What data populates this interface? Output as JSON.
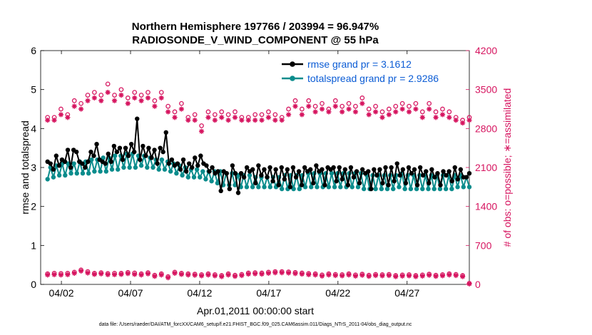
{
  "chart_data": {
    "type": "line",
    "title": "Northern Hemisphere 197766 / 203994 = 96.947%",
    "subtitle": "RADIOSONDE_V_WIND_COMPONENT @ 55 hPa",
    "xlabel": "Apr.01,2011 00:00:00 start",
    "ylabel_left": "rmse and totalspread",
    "ylabel_right": "# of obs: o=possible; ∗=assimilated",
    "footnote": "data file: /Users/raeder/DAI/ATM_forcXX/CAM6_setup/f.e21.FHIST_BGC.f09_025.CAM6assim.011/Diags_NTrS_2011-04/obs_diag_output.nc",
    "x_range_days": [
      0.5,
      31.5
    ],
    "ylim_left": [
      0,
      6
    ],
    "ylim_right": [
      0,
      4200
    ],
    "left_ticks": [
      "0",
      "1",
      "2",
      "3",
      "4",
      "5",
      "6"
    ],
    "right_ticks": [
      "0",
      "700",
      "1400",
      "2100",
      "2800",
      "3500",
      "4200"
    ],
    "x_ticks": [
      {
        "day": 2,
        "label": "04/02"
      },
      {
        "day": 7,
        "label": "04/07"
      },
      {
        "day": 12,
        "label": "04/12"
      },
      {
        "day": 17,
        "label": "04/17"
      },
      {
        "day": 22,
        "label": "04/22"
      },
      {
        "day": 27,
        "label": "04/27"
      }
    ],
    "colors": {
      "rmse": "#000000",
      "spread": "#0a8c8c",
      "obs": "#d6145f",
      "legend_text": "#0b5cd5"
    },
    "series": [
      {
        "name": "rmse grand pr = 3.1612",
        "key": "rmse",
        "values": [
          3.15,
          3.1,
          2.95,
          3.3,
          3.05,
          3.2,
          3.15,
          3.45,
          3.0,
          3.45,
          3.4,
          3.15,
          3.1,
          3.0,
          3.15,
          3.4,
          3.3,
          3.6,
          3.2,
          3.15,
          3.1,
          3.35,
          3.15,
          3.55,
          3.4,
          3.5,
          3.2,
          3.5,
          3.3,
          3.6,
          3.4,
          4.25,
          3.2,
          3.55,
          3.3,
          3.5,
          3.25,
          3.45,
          3.1,
          3.5,
          3.4,
          3.9,
          3.1,
          3.2,
          3.05,
          3.1,
          2.95,
          3.2,
          2.9,
          3.1,
          3.0,
          3.25,
          3.05,
          3.3,
          3.1,
          3.05,
          2.9,
          3.0,
          2.85,
          2.9,
          2.4,
          2.9,
          2.85,
          2.45,
          3.05,
          2.85,
          2.35,
          2.85,
          2.75,
          3.0,
          2.9,
          2.95,
          2.6,
          3.05,
          2.8,
          2.95,
          2.75,
          3.0,
          2.65,
          2.95,
          2.55,
          3.0,
          2.7,
          2.95,
          2.5,
          3.0,
          2.75,
          2.9,
          2.55,
          3.0,
          2.9,
          2.95,
          2.6,
          3.05,
          2.9,
          2.95,
          2.55,
          3.0,
          2.95,
          3.0,
          2.65,
          3.0,
          2.7,
          2.95,
          2.55,
          3.0,
          2.75,
          2.9,
          2.6,
          2.95,
          2.85,
          2.9,
          2.45,
          2.95,
          2.8,
          2.95,
          2.6,
          3.0,
          2.55,
          3.0,
          2.65,
          3.1,
          2.8,
          2.95,
          2.6,
          3.0,
          2.85,
          2.95,
          2.55,
          3.0,
          2.8,
          2.9,
          2.6,
          2.95,
          2.75,
          2.85,
          2.55,
          2.9,
          2.8,
          2.9,
          2.65,
          3.0,
          2.7,
          2.95,
          2.75,
          2.75,
          2.85
        ]
      },
      {
        "name": "totalspread grand pr = 2.9286",
        "key": "spread",
        "values": [
          2.7,
          3.0,
          2.75,
          3.05,
          2.8,
          3.1,
          2.8,
          3.1,
          2.85,
          3.1,
          2.85,
          3.15,
          2.85,
          3.15,
          2.85,
          3.2,
          2.9,
          3.2,
          2.9,
          3.25,
          2.9,
          3.25,
          2.95,
          3.3,
          2.95,
          3.3,
          3.0,
          3.35,
          3.0,
          3.35,
          3.0,
          3.3,
          3.05,
          3.3,
          3.0,
          3.25,
          3.0,
          3.2,
          2.95,
          3.2,
          2.95,
          3.15,
          2.9,
          3.1,
          2.85,
          3.05,
          2.8,
          3.0,
          2.75,
          2.95,
          2.75,
          2.95,
          2.75,
          2.9,
          2.7,
          2.9,
          2.65,
          2.9,
          2.6,
          2.9,
          2.55,
          2.85,
          2.55,
          2.85,
          2.55,
          2.8,
          2.5,
          2.8,
          2.5,
          2.8,
          2.5,
          2.75,
          2.5,
          2.75,
          2.5,
          2.75,
          2.5,
          2.75,
          2.5,
          2.75,
          2.45,
          2.8,
          2.45,
          2.8,
          2.45,
          2.8,
          2.45,
          2.8,
          2.5,
          2.85,
          2.5,
          2.85,
          2.5,
          2.85,
          2.5,
          2.85,
          2.5,
          2.85,
          2.5,
          2.85,
          2.5,
          2.85,
          2.5,
          2.85,
          2.5,
          2.85,
          2.5,
          2.85,
          2.45,
          2.8,
          2.45,
          2.8,
          2.45,
          2.8,
          2.45,
          2.8,
          2.45,
          2.8,
          2.45,
          2.8,
          2.5,
          2.85,
          2.45,
          2.8,
          2.45,
          2.8,
          2.45,
          2.8,
          2.45,
          2.8,
          2.45,
          2.8,
          2.45,
          2.8,
          2.45,
          2.8,
          2.45,
          2.8,
          2.45,
          2.8,
          2.5,
          2.8,
          2.5,
          2.75,
          2.5
        ]
      },
      {
        "name": "obs possible",
        "key": "obs_possible",
        "marker": "o",
        "values": [
          3000,
          3000,
          3150,
          3050,
          3300,
          3250,
          3400,
          3450,
          3400,
          3600,
          3400,
          3500,
          3350,
          3450,
          3400,
          3450,
          3300,
          3450,
          3200,
          3100,
          3250,
          3000,
          3050,
          2850,
          3100,
          3050,
          3100,
          3050,
          3100,
          3000,
          3000,
          3050,
          3050,
          3100,
          3050,
          3000,
          3150,
          3300,
          3150,
          3300,
          3200,
          3250,
          3150,
          3300,
          3200,
          3250,
          3200,
          3350,
          3150,
          3200,
          3100,
          3150,
          3200,
          3250,
          3200,
          3250,
          3100,
          3250,
          3100,
          3150,
          3100,
          3000,
          2950,
          3000
        ]
      },
      {
        "name": "obs assimilated",
        "key": "obs_assimilated",
        "marker": "*",
        "values": [
          2950,
          2950,
          3050,
          3000,
          3200,
          3150,
          3300,
          3350,
          3300,
          3450,
          3300,
          3400,
          3250,
          3350,
          3300,
          3350,
          3200,
          3350,
          3100,
          3000,
          3150,
          2950,
          2950,
          2750,
          3000,
          2950,
          3000,
          2950,
          3000,
          2950,
          2950,
          2950,
          2950,
          3000,
          2950,
          2950,
          3050,
          3200,
          3050,
          3200,
          3100,
          3150,
          3100,
          3200,
          3100,
          3150,
          3100,
          3250,
          3050,
          3100,
          3000,
          3050,
          3100,
          3150,
          3100,
          3150,
          3000,
          3150,
          3000,
          3050,
          3000,
          2950,
          2900,
          2950
        ]
      },
      {
        "name": "obs low possible",
        "key": "obs_low_possible",
        "marker": "o",
        "values": [
          190,
          200,
          195,
          200,
          220,
          260,
          230,
          200,
          210,
          195,
          200,
          200,
          215,
          205,
          190,
          210,
          165,
          190,
          140,
          220,
          200,
          190,
          185,
          175,
          190,
          175,
          160,
          190,
          165,
          180,
          205,
          210,
          205,
          220,
          230,
          230,
          225,
          215,
          205,
          195,
          190,
          170,
          190,
          180,
          175,
          190,
          170,
          185,
          165,
          180,
          175,
          180,
          160,
          170,
          175,
          160,
          170,
          185,
          165,
          175,
          190,
          180,
          160,
          20
        ]
      },
      {
        "name": "obs low assimilated",
        "key": "obs_low_assimilated",
        "marker": "*",
        "values": [
          170,
          175,
          170,
          175,
          200,
          240,
          205,
          180,
          190,
          175,
          175,
          180,
          195,
          180,
          170,
          190,
          145,
          170,
          120,
          200,
          180,
          170,
          165,
          155,
          170,
          155,
          140,
          170,
          145,
          160,
          185,
          190,
          185,
          200,
          210,
          210,
          205,
          195,
          185,
          175,
          170,
          150,
          170,
          160,
          155,
          170,
          150,
          165,
          145,
          160,
          155,
          160,
          140,
          150,
          155,
          140,
          150,
          165,
          145,
          155,
          170,
          160,
          140,
          10
        ]
      }
    ]
  }
}
